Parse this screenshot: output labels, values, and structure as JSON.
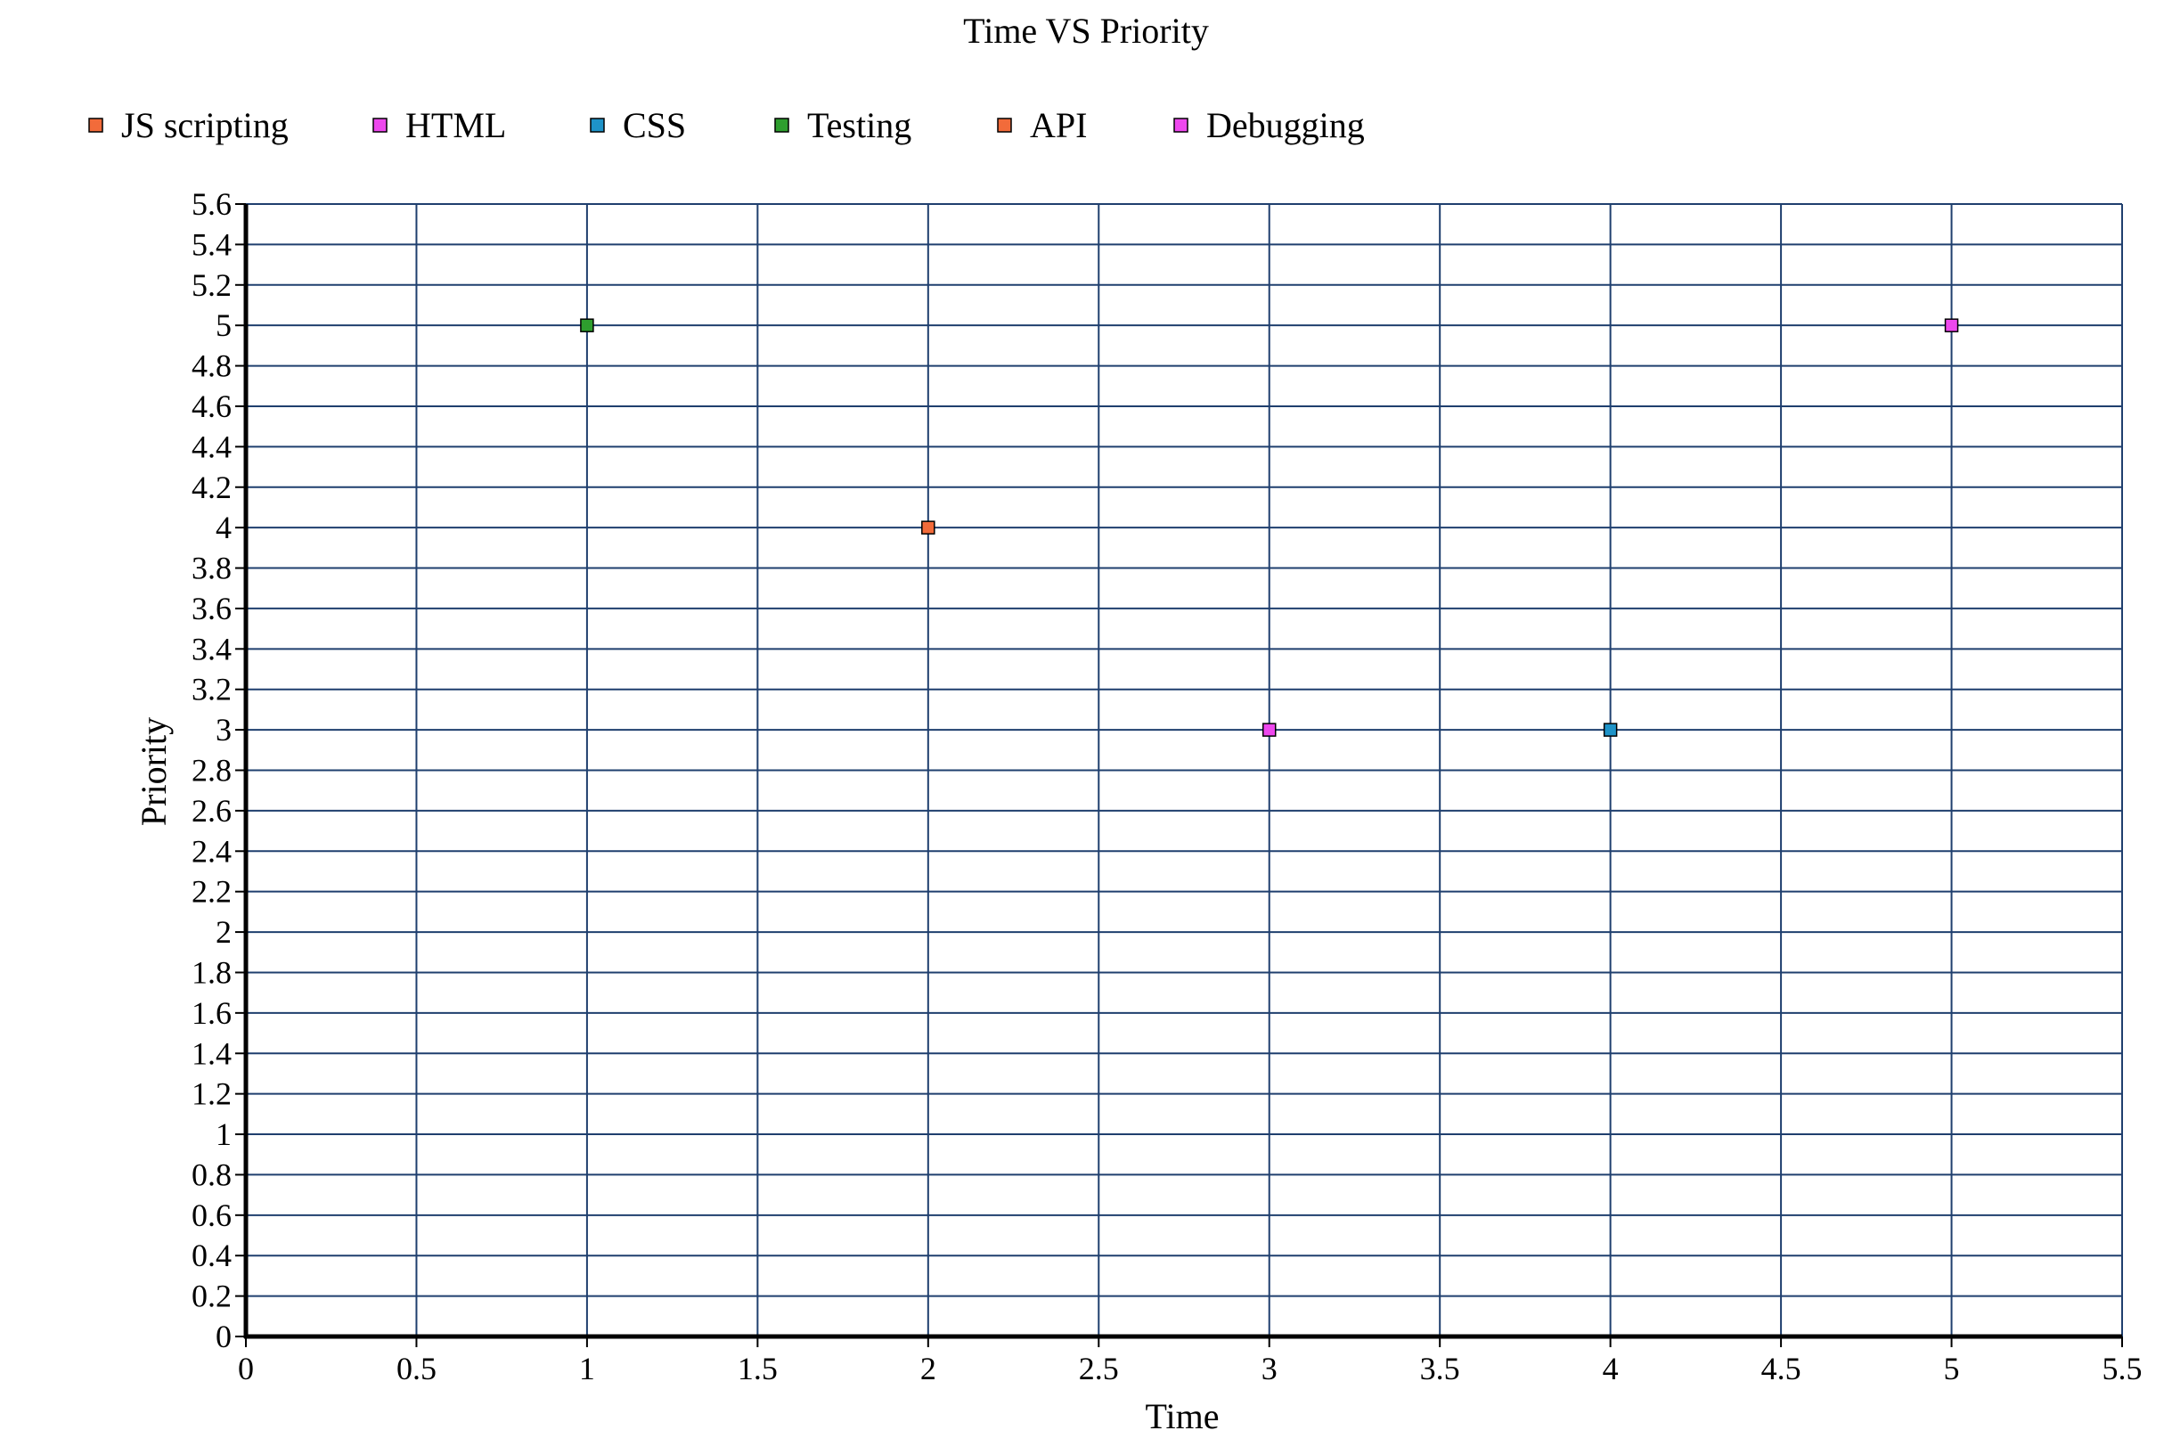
{
  "chart_data": {
    "type": "scatter",
    "title": "Time VS Priority",
    "xlabel": "Time",
    "ylabel": "Priority",
    "xlim": [
      0,
      5.5
    ],
    "ylim": [
      0,
      5.6
    ],
    "x_ticks": [
      "0",
      "0.5",
      "1",
      "1.5",
      "2",
      "2.5",
      "3",
      "3.5",
      "4",
      "4.5",
      "5",
      "5.5"
    ],
    "y_ticks": [
      "0",
      "0.2",
      "0.4",
      "0.6",
      "0.8",
      "1",
      "1.2",
      "1.4",
      "1.6",
      "1.8",
      "2",
      "2.2",
      "2.4",
      "2.6",
      "2.8",
      "3",
      "3.2",
      "3.4",
      "3.6",
      "3.8",
      "4",
      "4.2",
      "4.4",
      "4.6",
      "4.8",
      "5",
      "5.2",
      "5.4",
      "5.6"
    ],
    "grid": true,
    "legend_position": "top-left",
    "series": [
      {
        "name": "JS scripting",
        "color": "#f26b3a",
        "points": []
      },
      {
        "name": "HTML",
        "color": "#ee48ee",
        "points": [
          {
            "x": 3,
            "y": 3
          }
        ]
      },
      {
        "name": "CSS",
        "color": "#1e93c8",
        "points": [
          {
            "x": 4,
            "y": 3
          }
        ]
      },
      {
        "name": "Testing",
        "color": "#2e9e2e",
        "points": [
          {
            "x": 1,
            "y": 5
          }
        ]
      },
      {
        "name": "API",
        "color": "#f26b3a",
        "points": [
          {
            "x": 2,
            "y": 4
          }
        ]
      },
      {
        "name": "Debugging",
        "color": "#ee48ee",
        "points": [
          {
            "x": 5,
            "y": 5
          }
        ]
      }
    ],
    "grid_color": "#1f3f6e",
    "axis_color": "#000000"
  }
}
